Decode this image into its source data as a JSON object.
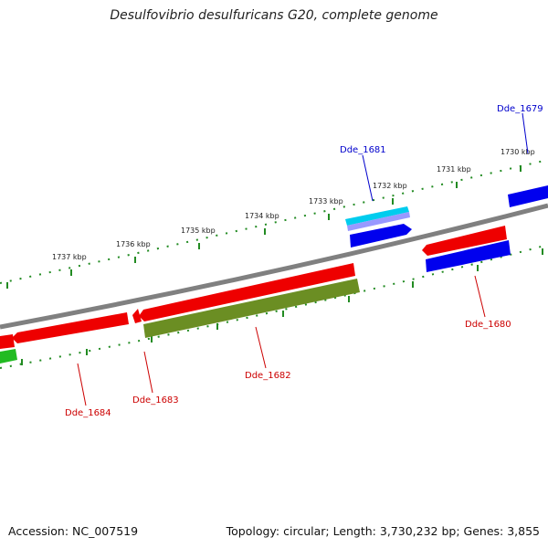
{
  "title": "Desulfovibrio desulfuricans G20, complete genome",
  "footer": {
    "accession": "Accession: NC_007519",
    "summary": "Topology: circular; Length: 3,730,232 bp; Genes: 3,855"
  },
  "scale_labels": [
    "1737 kbp",
    "1736 kbp",
    "1735 kbp",
    "1734 kbp",
    "1733 kbp",
    "1732 kbp",
    "1731 kbp",
    "1730 kbp"
  ],
  "gene_labels": [
    "Dde_1679",
    "Dde_1681",
    "Dde_1680",
    "Dde_1682",
    "Dde_1683",
    "Dde_1684"
  ],
  "colors": {
    "backbone": "#808080",
    "forward_cds": "#0000ee",
    "reverse_cds": "#ee0000",
    "rna": "#00ccee",
    "olive": "#6b8e23",
    "green": "#22bb22",
    "tick": "#228b22",
    "forward_label": "#0000cc",
    "reverse_label": "#cc0000"
  }
}
